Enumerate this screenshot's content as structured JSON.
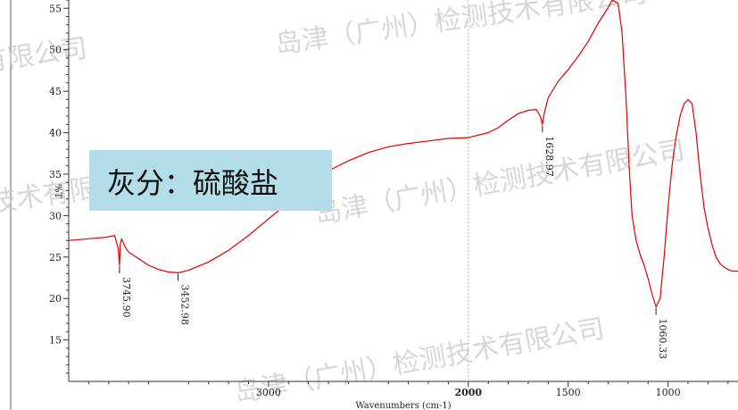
{
  "chart_data": {
    "type": "line",
    "title": "",
    "xlabel": "Wavenumbers (cm-1)",
    "ylabel": "%T",
    "xlim": [
      4000,
      650
    ],
    "ylim": [
      10,
      56
    ],
    "x_reversed": true,
    "grid": false,
    "x_ticks": [
      {
        "value": 3000,
        "label": "3000",
        "bold": false
      },
      {
        "value": 2000,
        "label": "2000",
        "bold": true
      },
      {
        "value": 1500,
        "label": "1500",
        "bold": false
      },
      {
        "value": 1000,
        "label": "1000",
        "bold": false
      }
    ],
    "y_ticks": [
      15,
      20,
      25,
      30,
      35,
      40,
      45,
      50,
      55
    ],
    "series": [
      {
        "color": "#e00000",
        "points": [
          [
            4000,
            27.0
          ],
          [
            3900,
            27.2
          ],
          [
            3810,
            27.4
          ],
          [
            3770,
            27.6
          ],
          [
            3752,
            26.0
          ],
          [
            3746,
            24.0
          ],
          [
            3742,
            26.5
          ],
          [
            3735,
            27.2
          ],
          [
            3720,
            26.3
          ],
          [
            3700,
            25.6
          ],
          [
            3650,
            24.8
          ],
          [
            3600,
            24.0
          ],
          [
            3550,
            23.5
          ],
          [
            3500,
            23.2
          ],
          [
            3453,
            23.1
          ],
          [
            3400,
            23.4
          ],
          [
            3300,
            24.4
          ],
          [
            3200,
            25.8
          ],
          [
            3100,
            27.6
          ],
          [
            3000,
            29.6
          ],
          [
            2900,
            31.6
          ],
          [
            2800,
            33.6
          ],
          [
            2700,
            35.4
          ],
          [
            2600,
            36.6
          ],
          [
            2500,
            37.6
          ],
          [
            2400,
            38.3
          ],
          [
            2300,
            38.7
          ],
          [
            2200,
            39.0
          ],
          [
            2100,
            39.3
          ],
          [
            2000,
            39.4
          ],
          [
            1900,
            40.0
          ],
          [
            1850,
            40.6
          ],
          [
            1800,
            41.5
          ],
          [
            1750,
            42.3
          ],
          [
            1700,
            42.7
          ],
          [
            1660,
            42.8
          ],
          [
            1640,
            42.0
          ],
          [
            1629,
            41.0
          ],
          [
            1620,
            42.3
          ],
          [
            1600,
            44.2
          ],
          [
            1550,
            46.2
          ],
          [
            1500,
            47.6
          ],
          [
            1450,
            49.2
          ],
          [
            1400,
            51.0
          ],
          [
            1350,
            53.2
          ],
          [
            1300,
            55.1
          ],
          [
            1280,
            56.0
          ],
          [
            1250,
            55.6
          ],
          [
            1230,
            52.0
          ],
          [
            1210,
            44.0
          ],
          [
            1195,
            36.0
          ],
          [
            1180,
            30.0
          ],
          [
            1160,
            27.0
          ],
          [
            1140,
            25.3
          ],
          [
            1120,
            24.0
          ],
          [
            1100,
            22.4
          ],
          [
            1080,
            20.5
          ],
          [
            1060,
            19.0
          ],
          [
            1040,
            20.0
          ],
          [
            1020,
            25.0
          ],
          [
            1000,
            31.0
          ],
          [
            980,
            36.0
          ],
          [
            960,
            39.5
          ],
          [
            940,
            42.0
          ],
          [
            920,
            43.5
          ],
          [
            900,
            44.0
          ],
          [
            880,
            43.5
          ],
          [
            860,
            40.0
          ],
          [
            840,
            35.0
          ],
          [
            820,
            31.0
          ],
          [
            800,
            28.5
          ],
          [
            780,
            26.5
          ],
          [
            760,
            25.0
          ],
          [
            740,
            24.2
          ],
          [
            720,
            23.8
          ],
          [
            700,
            23.5
          ],
          [
            680,
            23.3
          ],
          [
            650,
            23.3
          ]
        ]
      }
    ],
    "peaks": [
      {
        "x": 3745.9,
        "y": 24.0,
        "label": "3745.90"
      },
      {
        "x": 3452.98,
        "y": 23.1,
        "label": "3452.98"
      },
      {
        "x": 1628.97,
        "y": 41.0,
        "label": "1628.97"
      },
      {
        "x": 1060.33,
        "y": 19.0,
        "label": "1060.33"
      }
    ],
    "annotation": {
      "text": "灰分：硫酸盐",
      "background": "#b3dde8"
    },
    "watermarks": [
      "有限公司",
      "岛津（广州）检测技术有限公司",
      "技术有限",
      "岛津（广州）检测技术有限公司",
      "岛津（广州）检测技术有限公司"
    ]
  }
}
